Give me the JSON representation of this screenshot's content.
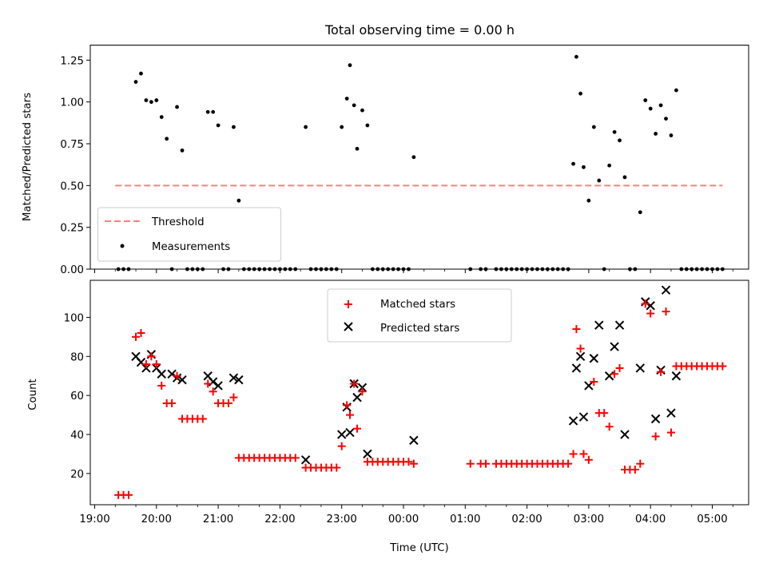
{
  "chart_data": [
    {
      "type": "scatter",
      "title": "Total observing time = 0.00 h",
      "xlabel": "",
      "ylabel": "Matched/Predicted stars",
      "ylim": [
        0,
        1.34
      ],
      "yticks": [
        "0.00",
        "0.25",
        "0.50",
        "0.75",
        "1.00",
        "1.25"
      ],
      "legend": {
        "placement": "lower-left",
        "entries": [
          "Threshold",
          "Measurements"
        ]
      },
      "threshold": {
        "name": "Threshold",
        "y": 0.5,
        "x_range": [
          "19:20",
          "05:10"
        ],
        "color": "#ff7f7f",
        "style": "dashed"
      },
      "series": [
        {
          "name": "Measurements",
          "color": "#000000",
          "marker": "dot",
          "points": [
            [
              "19:23",
              0.0
            ],
            [
              "19:28",
              0.0
            ],
            [
              "19:33",
              0.0
            ],
            [
              "19:40",
              1.12
            ],
            [
              "19:45",
              1.17
            ],
            [
              "19:50",
              1.01
            ],
            [
              "19:55",
              1.0
            ],
            [
              "20:00",
              1.01
            ],
            [
              "20:05",
              0.91
            ],
            [
              "20:10",
              0.78
            ],
            [
              "20:15",
              0.0
            ],
            [
              "20:20",
              0.97
            ],
            [
              "20:25",
              0.71
            ],
            [
              "20:30",
              0.0
            ],
            [
              "20:35",
              0.0
            ],
            [
              "20:40",
              0.0
            ],
            [
              "20:45",
              0.0
            ],
            [
              "20:50",
              0.94
            ],
            [
              "20:55",
              0.94
            ],
            [
              "21:00",
              0.86
            ],
            [
              "21:05",
              0.0
            ],
            [
              "21:10",
              0.0
            ],
            [
              "21:15",
              0.85
            ],
            [
              "21:20",
              0.41
            ],
            [
              "21:25",
              0.0
            ],
            [
              "21:30",
              0.0
            ],
            [
              "21:35",
              0.0
            ],
            [
              "21:40",
              0.0
            ],
            [
              "21:45",
              0.0
            ],
            [
              "21:50",
              0.0
            ],
            [
              "21:55",
              0.0
            ],
            [
              "22:00",
              0.0
            ],
            [
              "22:05",
              0.0
            ],
            [
              "22:10",
              0.0
            ],
            [
              "22:15",
              0.0
            ],
            [
              "22:25",
              0.85
            ],
            [
              "22:30",
              0.0
            ],
            [
              "22:35",
              0.0
            ],
            [
              "22:40",
              0.0
            ],
            [
              "22:45",
              0.0
            ],
            [
              "22:50",
              0.0
            ],
            [
              "22:55",
              0.0
            ],
            [
              "23:00",
              0.85
            ],
            [
              "23:05",
              1.02
            ],
            [
              "23:08",
              1.22
            ],
            [
              "23:12",
              0.98
            ],
            [
              "23:15",
              0.72
            ],
            [
              "23:20",
              0.95
            ],
            [
              "23:25",
              0.86
            ],
            [
              "23:30",
              0.0
            ],
            [
              "23:35",
              0.0
            ],
            [
              "23:40",
              0.0
            ],
            [
              "23:45",
              0.0
            ],
            [
              "23:50",
              0.0
            ],
            [
              "23:55",
              0.0
            ],
            [
              "00:00",
              0.0
            ],
            [
              "00:05",
              0.0
            ],
            [
              "00:10",
              0.67
            ],
            [
              "01:05",
              0.0
            ],
            [
              "01:15",
              0.0
            ],
            [
              "01:20",
              0.0
            ],
            [
              "01:30",
              0.0
            ],
            [
              "01:35",
              0.0
            ],
            [
              "01:40",
              0.0
            ],
            [
              "01:45",
              0.0
            ],
            [
              "01:50",
              0.0
            ],
            [
              "01:55",
              0.0
            ],
            [
              "02:00",
              0.0
            ],
            [
              "02:05",
              0.0
            ],
            [
              "02:10",
              0.0
            ],
            [
              "02:15",
              0.0
            ],
            [
              "02:20",
              0.0
            ],
            [
              "02:25",
              0.0
            ],
            [
              "02:30",
              0.0
            ],
            [
              "02:35",
              0.0
            ],
            [
              "02:40",
              0.0
            ],
            [
              "02:45",
              0.63
            ],
            [
              "02:48",
              1.27
            ],
            [
              "02:52",
              1.05
            ],
            [
              "02:55",
              0.61
            ],
            [
              "03:00",
              0.41
            ],
            [
              "03:05",
              0.85
            ],
            [
              "03:10",
              0.53
            ],
            [
              "03:15",
              0.0
            ],
            [
              "03:20",
              0.62
            ],
            [
              "03:25",
              0.82
            ],
            [
              "03:30",
              0.77
            ],
            [
              "03:35",
              0.55
            ],
            [
              "03:40",
              0.0
            ],
            [
              "03:45",
              0.0
            ],
            [
              "03:50",
              0.34
            ],
            [
              "03:55",
              1.01
            ],
            [
              "04:00",
              0.96
            ],
            [
              "04:05",
              0.81
            ],
            [
              "04:10",
              0.98
            ],
            [
              "04:15",
              0.9
            ],
            [
              "04:20",
              0.8
            ],
            [
              "04:25",
              1.07
            ],
            [
              "04:30",
              0.0
            ],
            [
              "04:35",
              0.0
            ],
            [
              "04:40",
              0.0
            ],
            [
              "04:45",
              0.0
            ],
            [
              "04:50",
              0.0
            ],
            [
              "04:55",
              0.0
            ],
            [
              "05:00",
              0.0
            ],
            [
              "05:05",
              0.0
            ],
            [
              "05:10",
              0.0
            ]
          ]
        }
      ]
    },
    {
      "type": "scatter",
      "title": "",
      "xlabel": "Time (UTC)",
      "ylabel": "Count",
      "ylim": [
        4,
        119
      ],
      "yticks": [
        "20",
        "40",
        "60",
        "80",
        "100"
      ],
      "xticks": [
        "19:00",
        "20:00",
        "21:00",
        "22:00",
        "23:00",
        "00:00",
        "01:00",
        "02:00",
        "03:00",
        "04:00",
        "05:00"
      ],
      "legend": {
        "placement": "upper-center",
        "entries": [
          "Matched stars",
          "Predicted stars"
        ]
      },
      "series": [
        {
          "name": "Matched stars",
          "color": "#ff0000",
          "marker": "plus",
          "points": [
            [
              "19:23",
              9
            ],
            [
              "19:28",
              9
            ],
            [
              "19:33",
              9
            ],
            [
              "19:40",
              90
            ],
            [
              "19:45",
              92
            ],
            [
              "19:50",
              76
            ],
            [
              "19:55",
              80
            ],
            [
              "20:00",
              76
            ],
            [
              "20:05",
              65
            ],
            [
              "20:10",
              56
            ],
            [
              "20:15",
              56
            ],
            [
              "20:20",
              70
            ],
            [
              "20:25",
              48
            ],
            [
              "20:30",
              48
            ],
            [
              "20:35",
              48
            ],
            [
              "20:40",
              48
            ],
            [
              "20:45",
              48
            ],
            [
              "20:50",
              66
            ],
            [
              "20:55",
              62
            ],
            [
              "21:00",
              56
            ],
            [
              "21:05",
              56
            ],
            [
              "21:10",
              56
            ],
            [
              "21:15",
              59
            ],
            [
              "21:20",
              28
            ],
            [
              "21:25",
              28
            ],
            [
              "21:30",
              28
            ],
            [
              "21:35",
              28
            ],
            [
              "21:40",
              28
            ],
            [
              "21:45",
              28
            ],
            [
              "21:50",
              28
            ],
            [
              "21:55",
              28
            ],
            [
              "22:00",
              28
            ],
            [
              "22:05",
              28
            ],
            [
              "22:10",
              28
            ],
            [
              "22:15",
              28
            ],
            [
              "22:25",
              23
            ],
            [
              "22:30",
              23
            ],
            [
              "22:35",
              23
            ],
            [
              "22:40",
              23
            ],
            [
              "22:45",
              23
            ],
            [
              "22:50",
              23
            ],
            [
              "22:55",
              23
            ],
            [
              "23:00",
              34
            ],
            [
              "23:05",
              55
            ],
            [
              "23:08",
              50
            ],
            [
              "23:12",
              66
            ],
            [
              "23:15",
              43
            ],
            [
              "23:20",
              62
            ],
            [
              "23:25",
              26
            ],
            [
              "23:30",
              26
            ],
            [
              "23:35",
              26
            ],
            [
              "23:40",
              26
            ],
            [
              "23:45",
              26
            ],
            [
              "23:50",
              26
            ],
            [
              "23:55",
              26
            ],
            [
              "00:00",
              26
            ],
            [
              "00:05",
              26
            ],
            [
              "00:10",
              25
            ],
            [
              "01:05",
              25
            ],
            [
              "01:15",
              25
            ],
            [
              "01:20",
              25
            ],
            [
              "01:30",
              25
            ],
            [
              "01:35",
              25
            ],
            [
              "01:40",
              25
            ],
            [
              "01:45",
              25
            ],
            [
              "01:50",
              25
            ],
            [
              "01:55",
              25
            ],
            [
              "02:00",
              25
            ],
            [
              "02:05",
              25
            ],
            [
              "02:10",
              25
            ],
            [
              "02:15",
              25
            ],
            [
              "02:20",
              25
            ],
            [
              "02:25",
              25
            ],
            [
              "02:30",
              25
            ],
            [
              "02:35",
              25
            ],
            [
              "02:40",
              25
            ],
            [
              "02:45",
              30
            ],
            [
              "02:48",
              94
            ],
            [
              "02:52",
              84
            ],
            [
              "02:55",
              30
            ],
            [
              "03:00",
              27
            ],
            [
              "03:05",
              67
            ],
            [
              "03:10",
              51
            ],
            [
              "03:15",
              51
            ],
            [
              "03:20",
              44
            ],
            [
              "03:25",
              71
            ],
            [
              "03:30",
              74
            ],
            [
              "03:35",
              22
            ],
            [
              "03:40",
              22
            ],
            [
              "03:45",
              22
            ],
            [
              "03:50",
              25
            ],
            [
              "03:55",
              107
            ],
            [
              "04:00",
              102
            ],
            [
              "04:05",
              39
            ],
            [
              "04:10",
              72
            ],
            [
              "04:15",
              103
            ],
            [
              "04:20",
              41
            ],
            [
              "04:25",
              75
            ],
            [
              "04:30",
              75
            ],
            [
              "04:35",
              75
            ],
            [
              "04:40",
              75
            ],
            [
              "04:45",
              75
            ],
            [
              "04:50",
              75
            ],
            [
              "04:55",
              75
            ],
            [
              "05:00",
              75
            ],
            [
              "05:05",
              75
            ],
            [
              "05:10",
              75
            ]
          ]
        },
        {
          "name": "Predicted stars",
          "color": "#000000",
          "marker": "x",
          "points": [
            [
              "19:40",
              80
            ],
            [
              "19:45",
              77
            ],
            [
              "19:50",
              74
            ],
            [
              "19:55",
              81
            ],
            [
              "20:00",
              74
            ],
            [
              "20:05",
              71
            ],
            [
              "20:15",
              71
            ],
            [
              "20:20",
              69
            ],
            [
              "20:25",
              68
            ],
            [
              "20:50",
              70
            ],
            [
              "20:55",
              67
            ],
            [
              "21:00",
              65
            ],
            [
              "21:15",
              69
            ],
            [
              "21:20",
              68
            ],
            [
              "22:25",
              27
            ],
            [
              "23:00",
              40
            ],
            [
              "23:05",
              54
            ],
            [
              "23:08",
              41
            ],
            [
              "23:12",
              66
            ],
            [
              "23:15",
              59
            ],
            [
              "23:20",
              64
            ],
            [
              "23:25",
              30
            ],
            [
              "00:10",
              37
            ],
            [
              "02:45",
              47
            ],
            [
              "02:48",
              74
            ],
            [
              "02:52",
              80
            ],
            [
              "02:55",
              49
            ],
            [
              "03:00",
              65
            ],
            [
              "03:05",
              79
            ],
            [
              "03:10",
              96
            ],
            [
              "03:20",
              70
            ],
            [
              "03:25",
              85
            ],
            [
              "03:30",
              96
            ],
            [
              "03:35",
              40
            ],
            [
              "03:50",
              74
            ],
            [
              "03:55",
              108
            ],
            [
              "04:00",
              106
            ],
            [
              "04:05",
              48
            ],
            [
              "04:10",
              73
            ],
            [
              "04:15",
              114
            ],
            [
              "04:20",
              51
            ],
            [
              "04:25",
              70
            ]
          ]
        }
      ]
    }
  ]
}
